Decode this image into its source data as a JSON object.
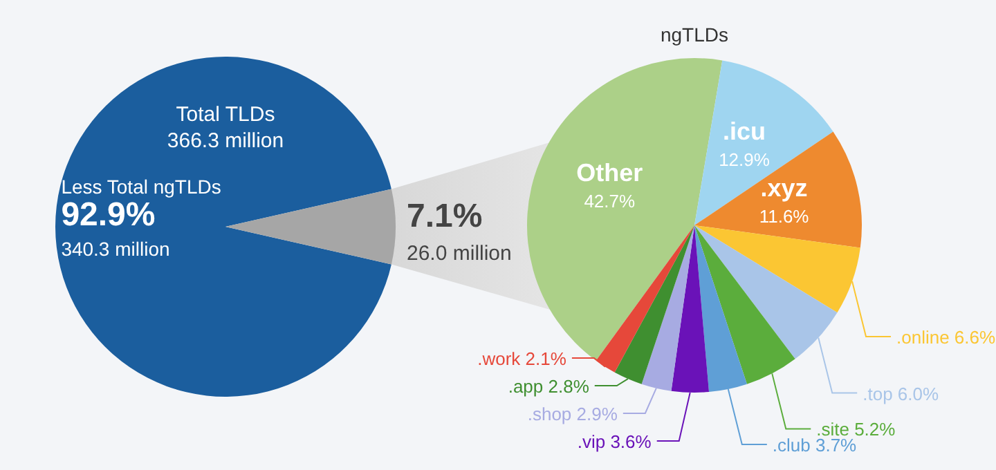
{
  "chart_data": [
    {
      "type": "pie",
      "title": "Total TLDs",
      "subtitle": "366.3 million",
      "categories": [
        "Less Total ngTLDs",
        null
      ],
      "values": [
        92.9,
        7.1
      ],
      "colors": [
        "#1b5e9e",
        "#a6a6a6"
      ],
      "value_labels": [
        "92.9%",
        "7.1%"
      ],
      "annotations": [
        "340.3 million",
        "26.0 million"
      ]
    },
    {
      "type": "pie",
      "title": "ngTLDs",
      "categories": [
        "Other",
        ".icu",
        ".xyz",
        ".online",
        ".top",
        ".site",
        ".club",
        ".vip",
        ".shop",
        ".app",
        ".work"
      ],
      "values": [
        42.7,
        12.9,
        11.6,
        6.6,
        6.0,
        5.2,
        3.7,
        3.6,
        2.9,
        2.8,
        2.1
      ],
      "colors": [
        "#acd088",
        "#9fd5f0",
        "#ee8a2f",
        "#fbc633",
        "#a9c5e8",
        "#5bad3c",
        "#5f9fd6",
        "#6a12b8",
        "#a7abe2",
        "#3f8f30",
        "#e6483a"
      ],
      "value_labels": [
        "42.7%",
        "12.9%",
        "11.6%",
        "6.6%",
        "6.0%",
        "5.2%",
        "3.7%",
        "3.6%",
        "2.9%",
        "2.8%",
        "2.1%"
      ]
    }
  ]
}
